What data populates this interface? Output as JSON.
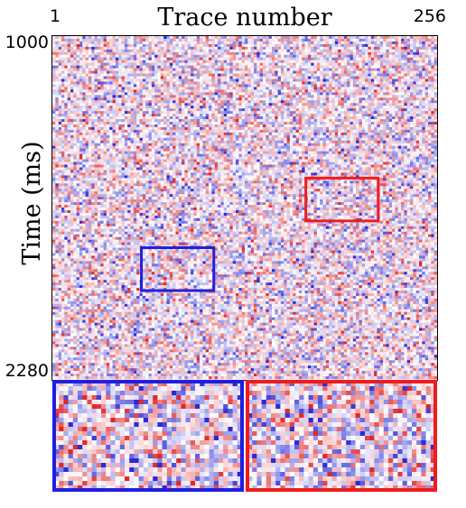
{
  "chart_data": {
    "type": "heatmap",
    "title": "Trace number",
    "xlabel": "Trace number",
    "ylabel": "Time (ms)",
    "x_tick_labels": [
      "1",
      "256"
    ],
    "y_tick_labels": [
      "1000",
      "2280"
    ],
    "x_range": [
      1,
      256
    ],
    "y_range": [
      1000,
      2280
    ],
    "colormap": "blue-white-red (seismic)",
    "colors": {
      "negative": "#2a2ad6",
      "zero": "#ffffff",
      "positive": "#e0282a"
    },
    "regions": [
      {
        "name": "blue-box",
        "color": "#1f1fe0",
        "trace_range": [
          60,
          108
        ],
        "time_range": [
          1790,
          1950
        ]
      },
      {
        "name": "red-box",
        "color": "#ee1c1c",
        "trace_range": [
          169,
          217
        ],
        "time_range": [
          1530,
          1690
        ]
      }
    ],
    "insets": [
      {
        "name": "blue-inset",
        "frame_color": "#1f1fe0",
        "source": "blue-box"
      },
      {
        "name": "red-inset",
        "frame_color": "#ee1c1c",
        "source": "red-box"
      }
    ]
  }
}
